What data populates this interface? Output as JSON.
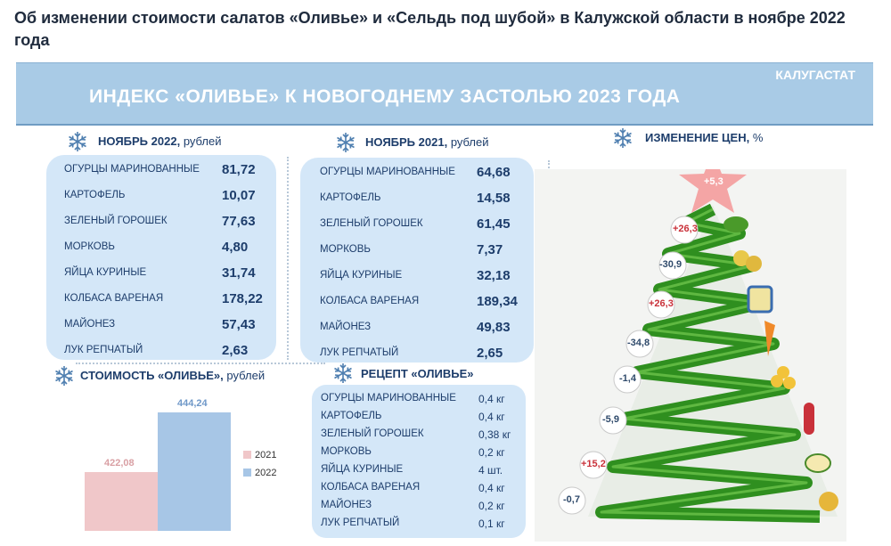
{
  "headline": "Об изменении стоимости салатов «Оливье» и «Сельдь под шубой» в Калужской области в ноябре 2022 года",
  "banner": {
    "title": "ИНДЕКС «ОЛИВЬЕ» К НОВОГОДНЕМУ ЗАСТОЛЬЮ 2023 ГОДА",
    "source": "КАЛУГАСТАТ"
  },
  "nov2022": {
    "title": "НОЯБРЬ 2022,",
    "unit": "рублей",
    "items": [
      {
        "name": "ОГУРЦЫ МАРИНОВАННЫЕ",
        "value": "81,72"
      },
      {
        "name": "КАРТОФЕЛЬ",
        "value": "10,07"
      },
      {
        "name": "ЗЕЛЕНЫЙ ГОРОШЕК",
        "value": "77,63"
      },
      {
        "name": "МОРКОВЬ",
        "value": "4,80"
      },
      {
        "name": "ЯЙЦА КУРИНЫЕ",
        "value": "31,74"
      },
      {
        "name": "КОЛБАСА ВАРЕНАЯ",
        "value": "178,22"
      },
      {
        "name": "МАЙОНЕЗ",
        "value": "57,43"
      },
      {
        "name": "ЛУК РЕПЧАТЫЙ",
        "value": "2,63"
      }
    ]
  },
  "nov2021": {
    "title": "НОЯБРЬ 2021,",
    "unit": "рублей",
    "items": [
      {
        "name": "ОГУРЦЫ МАРИНОВАННЫЕ",
        "value": "64,68"
      },
      {
        "name": "КАРТОФЕЛЬ",
        "value": "14,58"
      },
      {
        "name": "ЗЕЛЕНЫЙ ГОРОШЕК",
        "value": "61,45"
      },
      {
        "name": "МОРКОВЬ",
        "value": "7,37"
      },
      {
        "name": "ЯЙЦА КУРИНЫЕ",
        "value": "32,18"
      },
      {
        "name": "КОЛБАСА ВАРЕНАЯ",
        "value": "189,34"
      },
      {
        "name": "МАЙОНЕЗ",
        "value": "49,83"
      },
      {
        "name": "ЛУК РЕПЧАТЫЙ",
        "value": "2,65"
      }
    ]
  },
  "recipe": {
    "title": "РЕЦЕПТ «ОЛИВЬЕ»",
    "items": [
      {
        "name": "ОГУРЦЫ МАРИНОВАННЫЕ",
        "qty": "0,4 кг"
      },
      {
        "name": "КАРТОФЕЛЬ",
        "qty": "0,4 кг"
      },
      {
        "name": "ЗЕЛЕНЫЙ ГОРОШЕК",
        "qty": "0,38 кг"
      },
      {
        "name": "МОРКОВЬ",
        "qty": "0,2 кг"
      },
      {
        "name": "ЯЙЦА КУРИНЫЕ",
        "qty": "4 шт."
      },
      {
        "name": "КОЛБАСА ВАРЕНАЯ",
        "qty": "0,4 кг"
      },
      {
        "name": "МАЙОНЕЗ",
        "qty": "0,2 кг"
      },
      {
        "name": "ЛУК РЕПЧАТЫЙ",
        "qty": "0,1 кг"
      }
    ]
  },
  "cost": {
    "title": "СТОИМОСТЬ «ОЛИВЬЕ»,",
    "unit": "рублей"
  },
  "changes": {
    "title": "ИЗМЕНЕНИЕ ЦЕН,",
    "unit": "%"
  },
  "colors": {
    "bar2021": "#f0c7c9",
    "bar2022": "#a7c6e6",
    "label2021": "#d9a0a4",
    "label2022": "#6f98c8",
    "star": "#f4a5a5",
    "tree": "#2f8f1f",
    "panel": "#d4e7f8",
    "banner": "#a9cbe6"
  },
  "chart_data": [
    {
      "type": "bar",
      "categories": [
        "2021",
        "2022"
      ],
      "values": [
        422.08,
        444.24
      ],
      "value_labels": [
        "422,08",
        "444,24"
      ],
      "legend": [
        "2021",
        "2022"
      ],
      "legend_position": "right",
      "title": "СТОИМОСТЬ «ОЛИВЬЕ», рублей"
    },
    {
      "type": "table",
      "title": "ИЗМЕНЕНИЕ ЦЕН, %",
      "values": [
        "+5,3",
        "+26,3",
        "-30,9",
        "+26,3",
        "-34,8",
        "-1,4",
        "-5,9",
        "+15,2",
        "-0,7"
      ]
    }
  ]
}
